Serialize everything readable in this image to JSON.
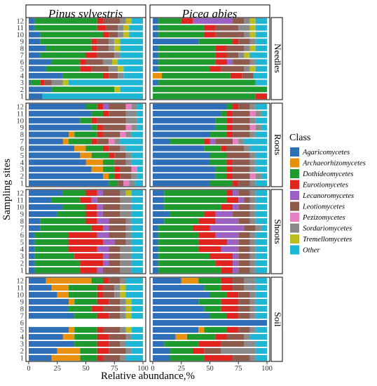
{
  "chart_data": {
    "type": "bar",
    "orientation": "horizontal",
    "stacked": true,
    "xlabel": "Relative abundance,%",
    "ylabel": "Sampling sites",
    "xlim": [
      0,
      100
    ],
    "xticks": [
      "0",
      "25",
      "50",
      "75",
      "100"
    ],
    "column_facets": [
      "Pinus sylvestris",
      "Picea abies"
    ],
    "row_facets": [
      "Needles",
      "Roots",
      "Shoots",
      "Soil"
    ],
    "sites": [
      "1",
      "2",
      "3",
      "4",
      "5",
      "6",
      "7",
      "8",
      "9",
      "10",
      "11",
      "12"
    ],
    "legend": {
      "title": "Class",
      "position": "right",
      "items": [
        {
          "name": "Agaricomycetes",
          "color": "#2f6fb7"
        },
        {
          "name": "Archaeorhizomycetes",
          "color": "#e8900f"
        },
        {
          "name": "Dothideomycetes",
          "color": "#1f9a2e"
        },
        {
          "name": "Eurotiomycetes",
          "color": "#e02420"
        },
        {
          "name": "Lecanoromycetes",
          "color": "#9b62c4"
        },
        {
          "name": "Leotiomycetes",
          "color": "#8e5a4e"
        },
        {
          "name": "Pezizomycetes",
          "color": "#e87fc3"
        },
        {
          "name": "Sordariomycetes",
          "color": "#8a8a8a"
        },
        {
          "name": "Tremellomycetes",
          "color": "#bcbd22"
        },
        {
          "name": "Other",
          "color": "#1fb5d4"
        }
      ]
    },
    "panels": [
      {
        "column": "Pinus sylvestris",
        "row": "Needles",
        "bars": [
          [
            12,
            0,
            0,
            0,
            0,
            0,
            0,
            0,
            0,
            88
          ],
          [
            20,
            0,
            55,
            0,
            0,
            0,
            0,
            0,
            5,
            20
          ],
          [
            2,
            0,
            8,
            4,
            0,
            6,
            0,
            10,
            5,
            65
          ],
          [
            30,
            0,
            35,
            5,
            0,
            8,
            0,
            5,
            0,
            17
          ],
          [
            15,
            0,
            30,
            10,
            0,
            15,
            0,
            8,
            5,
            17
          ],
          [
            20,
            0,
            25,
            5,
            0,
            15,
            0,
            8,
            5,
            22
          ],
          [
            10,
            0,
            40,
            10,
            0,
            15,
            0,
            5,
            0,
            20
          ],
          [
            15,
            0,
            40,
            5,
            0,
            10,
            0,
            5,
            5,
            20
          ],
          [
            10,
            0,
            45,
            5,
            0,
            10,
            0,
            5,
            5,
            20
          ],
          [
            10,
            0,
            55,
            5,
            0,
            8,
            0,
            5,
            5,
            12
          ],
          [
            5,
            0,
            55,
            8,
            0,
            10,
            0,
            5,
            5,
            12
          ],
          [
            5,
            0,
            55,
            5,
            0,
            15,
            0,
            5,
            5,
            10
          ]
        ]
      },
      {
        "column": "Picea abies",
        "row": "Needles",
        "bars": [
          [
            0,
            0,
            90,
            10,
            0,
            0,
            0,
            0,
            0,
            0
          ],
          [
            0,
            0,
            100,
            0,
            0,
            0,
            0,
            0,
            0,
            0
          ],
          [
            5,
            0,
            85,
            0,
            0,
            0,
            0,
            0,
            0,
            10
          ],
          [
            0,
            8,
            60,
            10,
            0,
            10,
            0,
            0,
            0,
            12
          ],
          [
            5,
            0,
            45,
            10,
            0,
            20,
            0,
            5,
            5,
            10
          ],
          [
            5,
            0,
            50,
            10,
            5,
            15,
            0,
            5,
            0,
            10
          ],
          [
            5,
            0,
            50,
            10,
            0,
            10,
            0,
            5,
            5,
            15
          ],
          [
            5,
            0,
            50,
            10,
            0,
            15,
            0,
            5,
            5,
            10
          ],
          [
            40,
            0,
            30,
            5,
            0,
            10,
            0,
            5,
            0,
            10
          ],
          [
            5,
            0,
            40,
            10,
            0,
            25,
            0,
            5,
            5,
            10
          ],
          [
            5,
            0,
            40,
            10,
            0,
            20,
            0,
            10,
            5,
            10
          ],
          [
            5,
            0,
            20,
            10,
            35,
            10,
            0,
            5,
            5,
            10
          ]
        ]
      },
      {
        "column": "Pinus sylvestris",
        "row": "Roots",
        "bars": [
          [
            70,
            0,
            8,
            0,
            0,
            5,
            5,
            5,
            0,
            7
          ],
          [
            65,
            5,
            5,
            5,
            0,
            10,
            0,
            5,
            0,
            5
          ],
          [
            55,
            10,
            10,
            5,
            0,
            10,
            5,
            0,
            0,
            5
          ],
          [
            50,
            15,
            10,
            0,
            0,
            10,
            0,
            5,
            0,
            10
          ],
          [
            45,
            10,
            15,
            5,
            0,
            10,
            0,
            5,
            0,
            10
          ],
          [
            40,
            10,
            15,
            5,
            0,
            10,
            0,
            5,
            0,
            15
          ],
          [
            30,
            5,
            20,
            5,
            0,
            10,
            5,
            5,
            0,
            20
          ],
          [
            35,
            5,
            20,
            5,
            0,
            15,
            5,
            5,
            0,
            10
          ],
          [
            55,
            0,
            5,
            5,
            0,
            20,
            5,
            5,
            0,
            5
          ],
          [
            45,
            0,
            10,
            5,
            0,
            25,
            0,
            10,
            0,
            5
          ],
          [
            55,
            0,
            10,
            5,
            0,
            15,
            0,
            10,
            0,
            5
          ],
          [
            50,
            0,
            10,
            5,
            5,
            15,
            5,
            5,
            0,
            5
          ]
        ]
      },
      {
        "column": "Picea abies",
        "row": "Roots",
        "bars": [
          [
            50,
            0,
            20,
            5,
            0,
            10,
            0,
            5,
            0,
            10
          ],
          [
            55,
            0,
            10,
            5,
            0,
            15,
            5,
            5,
            0,
            5
          ],
          [
            55,
            0,
            10,
            5,
            0,
            15,
            0,
            5,
            0,
            10
          ],
          [
            50,
            0,
            15,
            5,
            0,
            15,
            0,
            5,
            0,
            10
          ],
          [
            50,
            0,
            15,
            0,
            0,
            20,
            0,
            5,
            0,
            10
          ],
          [
            45,
            0,
            15,
            5,
            0,
            15,
            0,
            5,
            0,
            15
          ],
          [
            15,
            0,
            30,
            5,
            5,
            15,
            5,
            5,
            0,
            20
          ],
          [
            50,
            0,
            15,
            5,
            0,
            15,
            0,
            5,
            0,
            10
          ],
          [
            55,
            0,
            10,
            5,
            0,
            15,
            5,
            5,
            0,
            5
          ],
          [
            55,
            0,
            10,
            5,
            0,
            15,
            0,
            5,
            0,
            10
          ],
          [
            60,
            0,
            5,
            5,
            0,
            15,
            5,
            5,
            0,
            5
          ],
          [
            65,
            0,
            5,
            5,
            0,
            10,
            0,
            5,
            0,
            10
          ]
        ]
      },
      {
        "column": "Pinus sylvestris",
        "row": "Shoots",
        "bars": [
          [
            5,
            0,
            40,
            15,
            5,
            15,
            0,
            10,
            0,
            10
          ],
          [
            5,
            0,
            40,
            20,
            5,
            10,
            0,
            10,
            0,
            10
          ],
          [
            5,
            0,
            35,
            25,
            5,
            10,
            0,
            10,
            0,
            10
          ],
          [
            5,
            0,
            30,
            25,
            10,
            10,
            0,
            10,
            0,
            10
          ],
          [
            5,
            0,
            30,
            30,
            10,
            10,
            0,
            5,
            0,
            10
          ],
          [
            5,
            0,
            30,
            25,
            10,
            15,
            0,
            5,
            0,
            10
          ],
          [
            10,
            0,
            45,
            10,
            5,
            15,
            0,
            5,
            0,
            10
          ],
          [
            10,
            0,
            40,
            10,
            10,
            15,
            0,
            5,
            0,
            10
          ],
          [
            25,
            0,
            25,
            10,
            5,
            15,
            0,
            10,
            0,
            10
          ],
          [
            30,
            0,
            20,
            10,
            5,
            15,
            0,
            10,
            0,
            10
          ],
          [
            20,
            0,
            25,
            10,
            5,
            20,
            0,
            10,
            0,
            10
          ],
          [
            30,
            0,
            20,
            10,
            5,
            15,
            0,
            5,
            5,
            10
          ]
        ]
      },
      {
        "column": "Picea abies",
        "row": "Shoots",
        "bars": [
          [
            5,
            0,
            55,
            10,
            5,
            10,
            0,
            5,
            0,
            10
          ],
          [
            5,
            0,
            50,
            15,
            5,
            10,
            0,
            5,
            0,
            10
          ],
          [
            5,
            0,
            45,
            20,
            5,
            10,
            0,
            5,
            0,
            10
          ],
          [
            5,
            0,
            35,
            20,
            15,
            10,
            0,
            5,
            0,
            10
          ],
          [
            5,
            0,
            35,
            25,
            10,
            10,
            0,
            5,
            0,
            10
          ],
          [
            5,
            0,
            35,
            15,
            20,
            10,
            0,
            5,
            0,
            10
          ],
          [
            5,
            0,
            30,
            15,
            30,
            10,
            0,
            5,
            0,
            5
          ],
          [
            10,
            0,
            30,
            15,
            20,
            10,
            0,
            5,
            0,
            10
          ],
          [
            15,
            0,
            30,
            10,
            15,
            15,
            0,
            5,
            0,
            10
          ],
          [
            10,
            0,
            50,
            10,
            5,
            10,
            0,
            5,
            0,
            10
          ],
          [
            10,
            0,
            55,
            10,
            5,
            5,
            0,
            5,
            0,
            10
          ],
          [
            10,
            0,
            55,
            5,
            5,
            10,
            0,
            5,
            0,
            10
          ]
        ]
      },
      {
        "column": "Pinus sylvestris",
        "row": "Soil",
        "bars": [
          [
            20,
            25,
            15,
            5,
            0,
            15,
            0,
            5,
            0,
            15
          ],
          [
            25,
            20,
            15,
            10,
            0,
            15,
            0,
            5,
            0,
            10
          ],
          [
            40,
            0,
            20,
            10,
            0,
            10,
            0,
            5,
            0,
            15
          ],
          [
            30,
            10,
            20,
            10,
            0,
            15,
            0,
            5,
            0,
            10
          ],
          [
            35,
            5,
            20,
            5,
            0,
            15,
            0,
            5,
            5,
            10
          ],
          [
            0,
            0,
            0,
            0,
            0,
            0,
            0,
            0,
            0,
            0
          ],
          [
            40,
            0,
            20,
            10,
            0,
            10,
            0,
            5,
            5,
            10
          ],
          [
            35,
            0,
            20,
            10,
            0,
            15,
            0,
            5,
            5,
            10
          ],
          [
            35,
            5,
            20,
            10,
            0,
            10,
            0,
            5,
            5,
            10
          ],
          [
            25,
            10,
            25,
            5,
            0,
            10,
            0,
            5,
            5,
            15
          ],
          [
            20,
            15,
            25,
            5,
            0,
            10,
            0,
            5,
            5,
            15
          ],
          [
            15,
            40,
            10,
            5,
            0,
            10,
            0,
            5,
            0,
            15
          ]
        ]
      },
      {
        "column": "Picea abies",
        "row": "Soil",
        "bars": [
          [
            15,
            0,
            30,
            25,
            0,
            15,
            0,
            5,
            0,
            10
          ],
          [
            15,
            0,
            20,
            10,
            0,
            15,
            0,
            30,
            0,
            10
          ],
          [
            10,
            0,
            30,
            20,
            0,
            20,
            0,
            10,
            0,
            10
          ],
          [
            20,
            10,
            25,
            10,
            0,
            15,
            0,
            5,
            0,
            15
          ],
          [
            40,
            5,
            20,
            10,
            0,
            10,
            0,
            5,
            0,
            10
          ],
          [
            100,
            0,
            0,
            0,
            0,
            0,
            0,
            0,
            0,
            0
          ],
          [
            50,
            0,
            15,
            10,
            0,
            10,
            0,
            5,
            0,
            10
          ],
          [
            45,
            0,
            15,
            15,
            0,
            10,
            0,
            5,
            0,
            10
          ],
          [
            40,
            0,
            20,
            15,
            0,
            10,
            0,
            5,
            0,
            10
          ],
          [
            50,
            0,
            15,
            10,
            0,
            10,
            0,
            5,
            0,
            10
          ],
          [
            45,
            0,
            15,
            10,
            0,
            10,
            0,
            10,
            0,
            10
          ],
          [
            25,
            15,
            20,
            10,
            0,
            10,
            0,
            10,
            0,
            10
          ]
        ]
      }
    ]
  }
}
